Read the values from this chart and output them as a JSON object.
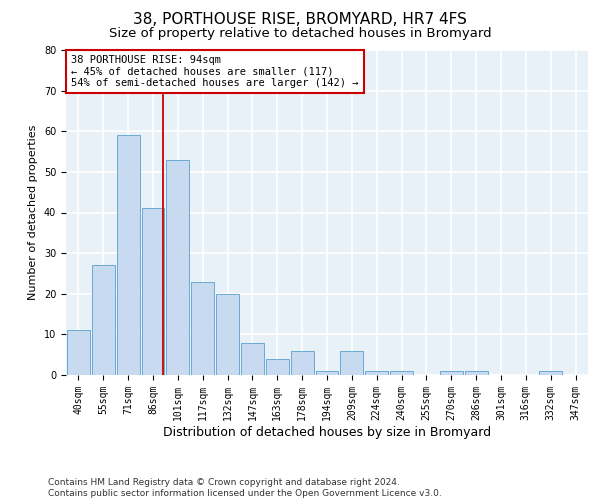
{
  "title": "38, PORTHOUSE RISE, BROMYARD, HR7 4FS",
  "subtitle": "Size of property relative to detached houses in Bromyard",
  "xlabel": "Distribution of detached houses by size in Bromyard",
  "ylabel": "Number of detached properties",
  "categories": [
    "40sqm",
    "55sqm",
    "71sqm",
    "86sqm",
    "101sqm",
    "117sqm",
    "132sqm",
    "147sqm",
    "163sqm",
    "178sqm",
    "194sqm",
    "209sqm",
    "224sqm",
    "240sqm",
    "255sqm",
    "270sqm",
    "286sqm",
    "301sqm",
    "316sqm",
    "332sqm",
    "347sqm"
  ],
  "values": [
    11,
    27,
    59,
    41,
    53,
    23,
    20,
    8,
    4,
    6,
    1,
    6,
    1,
    1,
    0,
    1,
    1,
    0,
    0,
    1,
    0
  ],
  "bar_color": "#c8daf0",
  "bar_edge_color": "#6aaad4",
  "vline_color": "#cc0000",
  "vline_x": 3.42,
  "annotation_line1": "38 PORTHOUSE RISE: 94sqm",
  "annotation_line2": "← 45% of detached houses are smaller (117)",
  "annotation_line3": "54% of semi-detached houses are larger (142) →",
  "annotation_box_color": "white",
  "annotation_box_edge": "#cc0000",
  "ylim": [
    0,
    80
  ],
  "yticks": [
    0,
    10,
    20,
    30,
    40,
    50,
    60,
    70,
    80
  ],
  "footer": "Contains HM Land Registry data © Crown copyright and database right 2024.\nContains public sector information licensed under the Open Government Licence v3.0.",
  "background_color": "#e8f0f8",
  "grid_color": "white",
  "title_fontsize": 11,
  "subtitle_fontsize": 9.5,
  "xlabel_fontsize": 9,
  "ylabel_fontsize": 8,
  "tick_fontsize": 7,
  "annotation_fontsize": 7.5,
  "footer_fontsize": 6.5
}
